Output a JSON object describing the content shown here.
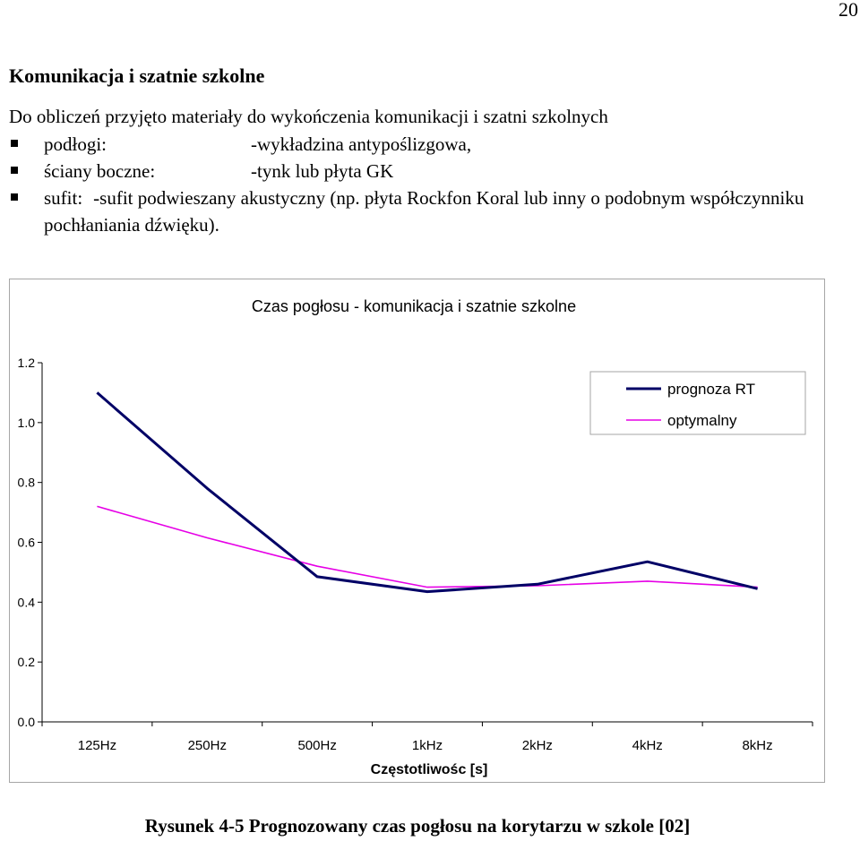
{
  "page": {
    "number": "20"
  },
  "section": {
    "title": "Komunikacja i szatnie szkolne",
    "intro": "Do obliczeń przyjęto materiały do wykończenia komunikacji i szatni szkolnych",
    "bullets": [
      {
        "label": "podłogi:",
        "value": "-wykładzina antypoślizgowa,"
      },
      {
        "label": "ściany boczne:",
        "value": "-tynk lub płyta GK"
      },
      {
        "label": "sufit:",
        "value": "-sufit podwieszany akustyczny (np. płyta Rockfon Koral lub inny o podobnym współczynniku pochłaniania dźwięku)."
      }
    ]
  },
  "chart_data": {
    "type": "line",
    "title": "Czas pogłosu - komunikacja i szatnie szkolne",
    "xlabel": "Częstotliwośc [s]",
    "ylabel": "",
    "categories": [
      "125Hz",
      "250Hz",
      "500Hz",
      "1kHz",
      "2kHz",
      "4kHz",
      "8kHz"
    ],
    "ylim": [
      0.0,
      1.2
    ],
    "yticks": [
      "0.0",
      "0.2",
      "0.4",
      "0.6",
      "0.8",
      "1.0",
      "1.2"
    ],
    "grid": false,
    "legend_position": "top-right",
    "series": [
      {
        "name": "prognoza RT",
        "color": "#000066",
        "values": [
          1.1,
          0.78,
          0.485,
          0.435,
          0.46,
          0.535,
          0.445
        ]
      },
      {
        "name": "optymalny",
        "color": "#e600e6",
        "values": [
          0.72,
          0.615,
          0.52,
          0.45,
          0.455,
          0.47,
          0.45
        ]
      }
    ]
  },
  "caption": "Rysunek 4-5 Prognozowany czas pogłosu na korytarzu w szkole [02]"
}
